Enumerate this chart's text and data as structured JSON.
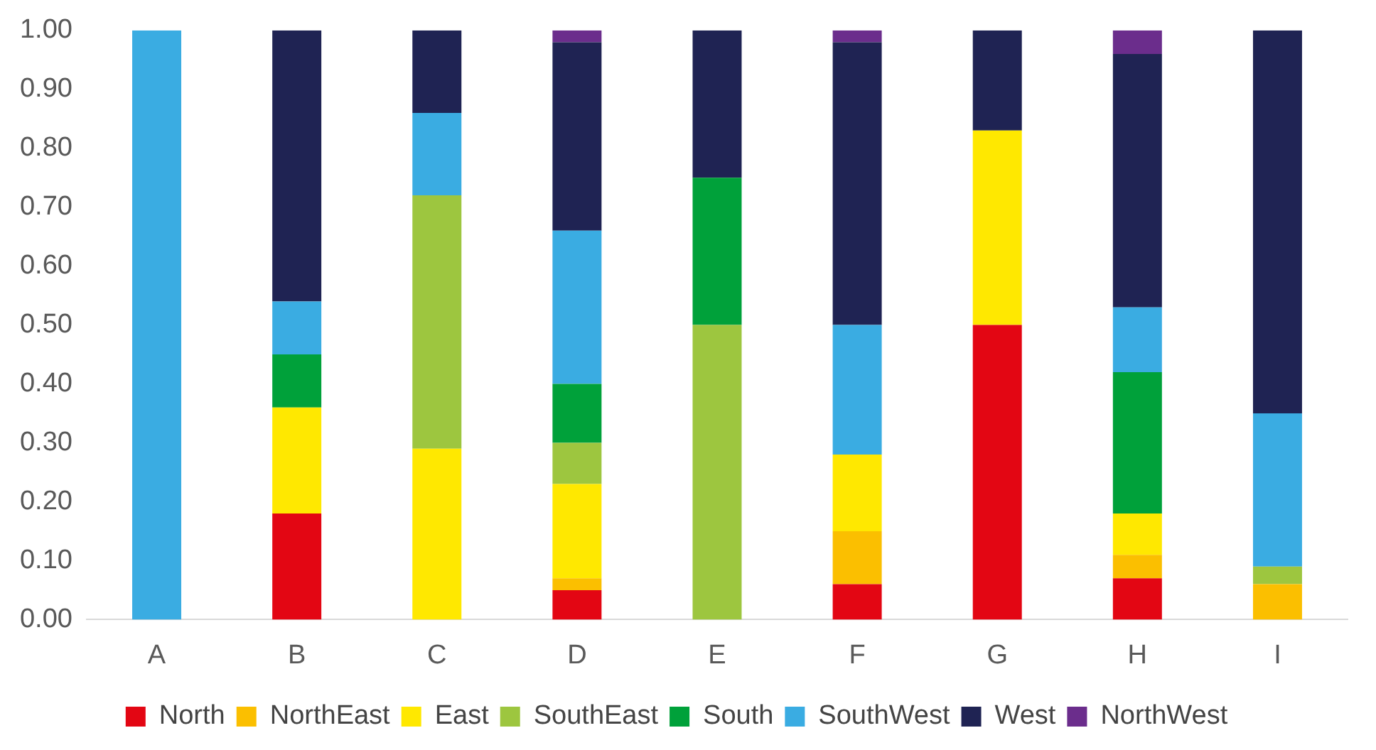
{
  "chart_data": {
    "type": "bar",
    "stacked": true,
    "categories": [
      "A",
      "B",
      "C",
      "D",
      "E",
      "F",
      "G",
      "H",
      "I"
    ],
    "series": [
      {
        "name": "North",
        "color": "#e30613",
        "values": [
          0,
          0.18,
          0,
          0.05,
          0,
          0.06,
          0.5,
          0.07,
          0
        ]
      },
      {
        "name": "NorthEast",
        "color": "#fbbf00",
        "values": [
          0,
          0,
          0,
          0.02,
          0,
          0.09,
          0,
          0.04,
          0.06
        ]
      },
      {
        "name": "East",
        "color": "#ffe800",
        "values": [
          0,
          0.18,
          0.29,
          0.16,
          0,
          0.13,
          0.33,
          0.07,
          0
        ]
      },
      {
        "name": "SouthEast",
        "color": "#9dc63f",
        "values": [
          0,
          0,
          0.43,
          0.07,
          0.5,
          0,
          0,
          0,
          0.03
        ]
      },
      {
        "name": "South",
        "color": "#00a13a",
        "values": [
          0,
          0.09,
          0,
          0.1,
          0.25,
          0,
          0,
          0.24,
          0
        ]
      },
      {
        "name": "SouthWest",
        "color": "#3aace2",
        "values": [
          1,
          0.09,
          0.14,
          0.26,
          0,
          0.22,
          0,
          0.11,
          0.26
        ]
      },
      {
        "name": "West",
        "color": "#1f2353",
        "values": [
          0,
          0.46,
          0.14,
          0.32,
          0.25,
          0.48,
          0.17,
          0.43,
          0.65
        ]
      },
      {
        "name": "NorthWest",
        "color": "#6b2d8c",
        "values": [
          0,
          0,
          0,
          0.02,
          0,
          0.02,
          0,
          0.04,
          0
        ]
      }
    ],
    "ylim": [
      0,
      1
    ],
    "yticks": [
      {
        "value": 0,
        "label": "0.00"
      },
      {
        "value": 0.1,
        "label": "0.10"
      },
      {
        "value": 0.2,
        "label": "0.20"
      },
      {
        "value": 0.3,
        "label": "0.30"
      },
      {
        "value": 0.4,
        "label": "0.40"
      },
      {
        "value": 0.5,
        "label": "0.50"
      },
      {
        "value": 0.6,
        "label": "0.60"
      },
      {
        "value": 0.7,
        "label": "0.70"
      },
      {
        "value": 0.8,
        "label": "0.80"
      },
      {
        "value": 0.9,
        "label": "0.90"
      },
      {
        "value": 1,
        "label": "1.00"
      }
    ],
    "grid": false,
    "legend": "bottom"
  }
}
